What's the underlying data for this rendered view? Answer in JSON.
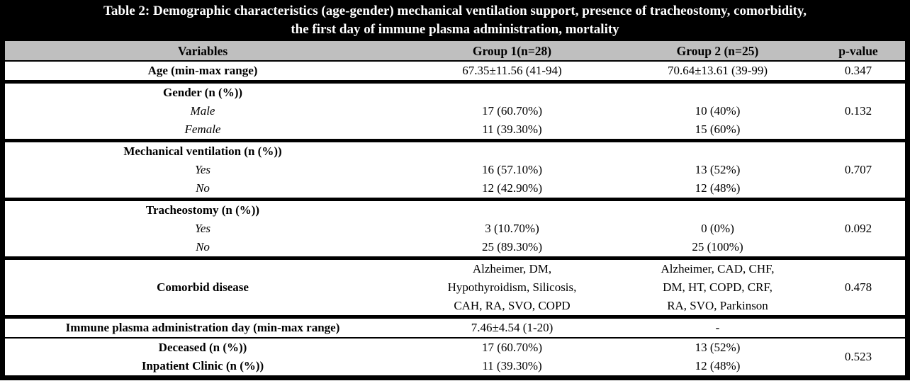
{
  "title": {
    "line1": "Table 2: Demographic characteristics (age-gender) mechanical ventilation support, presence of tracheostomy, comorbidity,",
    "line2": "the first day of immune plasma administration, mortality"
  },
  "header": {
    "columns": [
      "Variables",
      "Group 1(n=28)",
      "Group 2 (n=25)",
      "p-value"
    ]
  },
  "sections": [
    {
      "label": "Age (min-max range)",
      "g1": "67.35±11.56 (41-94)",
      "g2": "70.64±13.61 (39-99)",
      "p": "0.347"
    },
    {
      "label": "Gender (n (%))",
      "rows": [
        {
          "label": "Male",
          "g1": "17 (60.70%)",
          "g2": "10 (40%)",
          "p": "0.132"
        },
        {
          "label": "Female",
          "g1": "11 (39.30%)",
          "g2": "15 (60%)",
          "p": ""
        }
      ]
    },
    {
      "label": "Mechanical ventilation (n (%))",
      "rows": [
        {
          "label": "Yes",
          "g1": "16 (57.10%)",
          "g2": "13 (52%)",
          "p": "0.707"
        },
        {
          "label": "No",
          "g1": "12 (42.90%)",
          "g2": "12 (48%)",
          "p": ""
        }
      ]
    },
    {
      "label": "Tracheostomy (n (%))",
      "rows": [
        {
          "label": "Yes",
          "g1": "3 (10.70%)",
          "g2": "0 (0%)",
          "p": "0.092"
        },
        {
          "label": "No",
          "g1": "25 (89.30%)",
          "g2": "25 (100%)",
          "p": ""
        }
      ]
    },
    {
      "label": "Comorbid disease",
      "g1_lines": [
        "Alzheimer, DM,",
        "Hypothyroidism, Silicosis,",
        "CAH, RA, SVO, COPD"
      ],
      "g2_lines": [
        "Alzheimer, CAD, CHF,",
        "DM, HT, COPD, CRF,",
        "RA, SVO, Parkinson"
      ],
      "p": "0.478"
    },
    {
      "label": "Immune plasma administration day (min-max range)",
      "g1": "7.46±4.54 (1-20)",
      "g2": "-",
      "p": ""
    },
    {
      "rows": [
        {
          "label": "Deceased (n (%))",
          "g1": "17 (60.70%)",
          "g2": "13 (52%)"
        },
        {
          "label": "Inpatient Clinic (n (%))",
          "g1": "11 (39.30%)",
          "g2": "12 (48%)"
        }
      ],
      "p": "0.523"
    }
  ],
  "colors": {
    "title_bg": "#000000",
    "title_text": "#ffffff",
    "header_bg": "#bfbfbf",
    "border": "#000000",
    "body_bg": "#ffffff"
  }
}
